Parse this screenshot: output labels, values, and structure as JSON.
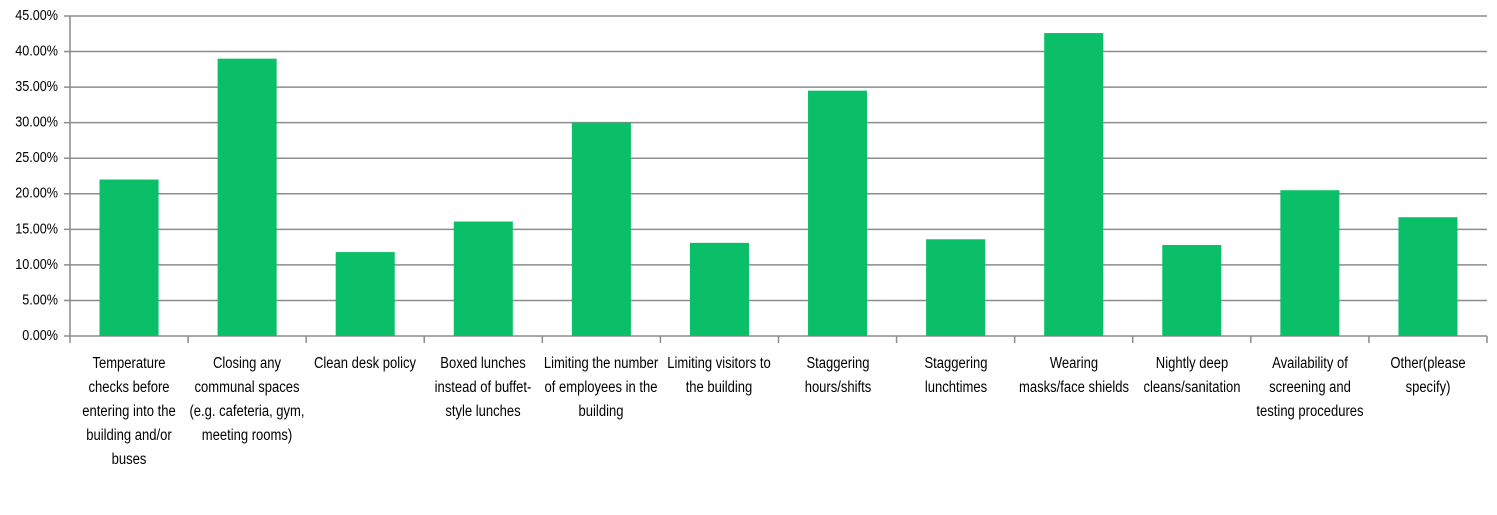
{
  "chart_data": {
    "type": "bar",
    "categories": [
      "Temperature checks before entering into the building and/or buses",
      "Closing any communal spaces (e.g. cafeteria, gym, meeting rooms)",
      "Clean desk policy",
      "Boxed lunches instead of buffet-style lunches",
      "Limiting the number of employees in the building",
      "Limiting visitors to the building",
      "Staggering hours/shifts",
      "Staggering lunchtimes",
      "Wearing masks/face shields",
      "Nightly deep cleans/sanitation",
      "Availability of screening and testing procedures",
      "Other(please specify)"
    ],
    "values": [
      22,
      39,
      11.8,
      16.1,
      30,
      13.1,
      34.5,
      13.6,
      42.6,
      12.8,
      20.5,
      16.7
    ],
    "color": "#0abf67",
    "ylim": [
      0,
      45
    ],
    "yticks": [
      {
        "value": 0,
        "label": "0.00%"
      },
      {
        "value": 5,
        "label": "5.00%"
      },
      {
        "value": 10,
        "label": "10.00%"
      },
      {
        "value": 15,
        "label": "15.00%"
      },
      {
        "value": 20,
        "label": "20.00%"
      },
      {
        "value": 25,
        "label": "25.00%"
      },
      {
        "value": 30,
        "label": "30.00%"
      },
      {
        "value": 35,
        "label": "35.00%"
      },
      {
        "value": 40,
        "label": "40.00%"
      },
      {
        "value": 45,
        "label": "45.00%"
      }
    ],
    "grid": true
  }
}
